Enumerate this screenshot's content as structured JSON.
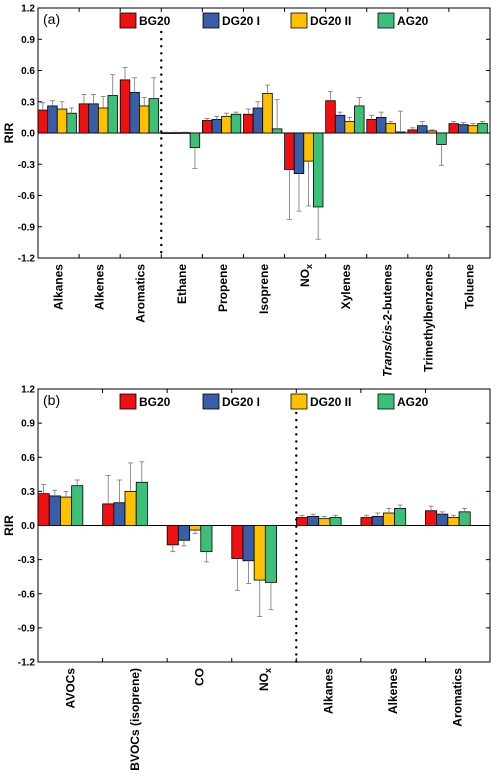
{
  "chart_data": [
    {
      "type": "bar",
      "panel_label": "(a)",
      "ylabel": "RIR",
      "ylim": [
        -1.2,
        1.2
      ],
      "yticks": [
        "-1.2",
        "-0.9",
        "-0.6",
        "-0.3",
        "0.0",
        "0.3",
        "0.6",
        "0.9",
        "1.2"
      ],
      "divider_after_index": 2,
      "legend_position": "top",
      "categories": [
        {
          "text": "Alkanes"
        },
        {
          "text": "Alkenes"
        },
        {
          "text": "Aromatics"
        },
        {
          "text": "Ethane"
        },
        {
          "text": "Propene"
        },
        {
          "text": "Isoprene"
        },
        {
          "text": "NO",
          "sub": "x"
        },
        {
          "text": "Xylenes"
        },
        {
          "italic": "Trans/cis",
          "text": "-2-butenes"
        },
        {
          "text": "Trimethylbenzenes"
        },
        {
          "text": "Toluene"
        }
      ],
      "series": [
        {
          "name": "BG20",
          "color": "#ee1111",
          "values": [
            0.22,
            0.28,
            0.51,
            0.003,
            0.12,
            0.18,
            -0.35,
            0.31,
            0.13,
            0.03,
            0.09
          ],
          "errors": [
            0.07,
            0.09,
            0.12,
            0.005,
            0.02,
            0.05,
            0.48,
            0.09,
            0.04,
            0.02,
            0.02
          ]
        },
        {
          "name": "DG20 I",
          "color": "#3a5da8",
          "values": [
            0.26,
            0.28,
            0.39,
            0.003,
            0.13,
            0.24,
            -0.39,
            0.17,
            0.15,
            0.07,
            0.08
          ],
          "errors": [
            0.05,
            0.09,
            0.14,
            0.005,
            0.03,
            0.06,
            0.36,
            0.03,
            0.05,
            0.04,
            0.02
          ]
        },
        {
          "name": "DG20 II",
          "color": "#ffc000",
          "values": [
            0.23,
            0.24,
            0.26,
            0.004,
            0.16,
            0.38,
            -0.27,
            0.11,
            0.09,
            0.02,
            0.07
          ],
          "errors": [
            0.07,
            0.11,
            0.08,
            0.005,
            0.03,
            0.08,
            0.43,
            0.04,
            0.02,
            0.01,
            0.02
          ]
        },
        {
          "name": "AG20",
          "color": "#3cc079",
          "values": [
            0.19,
            0.36,
            0.33,
            -0.14,
            0.18,
            0.04,
            -0.71,
            0.26,
            0.01,
            -0.11,
            0.09
          ],
          "errors": [
            0.05,
            0.2,
            0.2,
            0.2,
            0.02,
            0.28,
            0.31,
            0.08,
            0.2,
            0.2,
            0.02
          ]
        }
      ]
    },
    {
      "type": "bar",
      "panel_label": "(b)",
      "ylabel": "RIR",
      "ylim": [
        -1.2,
        1.2
      ],
      "yticks": [
        "-1.2",
        "-0.9",
        "-0.6",
        "-0.3",
        "0.0",
        "0.3",
        "0.6",
        "0.9",
        "1.2"
      ],
      "divider_after_index": 3,
      "legend_position": "top",
      "categories": [
        {
          "text": "AVOCs"
        },
        {
          "text": "BVOCs (isoprene)"
        },
        {
          "text": "CO"
        },
        {
          "text": "NO",
          "sub": "x"
        },
        {
          "text": "Alkanes"
        },
        {
          "text": "Alkenes"
        },
        {
          "text": "Aromatics"
        }
      ],
      "series": [
        {
          "name": "BG20",
          "color": "#ee1111",
          "values": [
            0.28,
            0.19,
            -0.17,
            -0.29,
            0.07,
            0.07,
            0.13
          ],
          "errors": [
            0.08,
            0.25,
            0.06,
            0.28,
            0.02,
            0.02,
            0.04
          ]
        },
        {
          "name": "DG20 I",
          "color": "#3a5da8",
          "values": [
            0.26,
            0.2,
            -0.13,
            -0.31,
            0.08,
            0.08,
            0.1
          ],
          "errors": [
            0.05,
            0.2,
            0.05,
            0.2,
            0.02,
            0.03,
            0.02
          ]
        },
        {
          "name": "DG20 II",
          "color": "#ffc000",
          "values": [
            0.25,
            0.3,
            -0.04,
            -0.48,
            0.06,
            0.11,
            0.07
          ],
          "errors": [
            0.05,
            0.25,
            0.03,
            0.32,
            0.02,
            0.04,
            0.02
          ]
        },
        {
          "name": "AG20",
          "color": "#3cc079",
          "values": [
            0.35,
            0.38,
            -0.23,
            -0.5,
            0.07,
            0.15,
            0.12
          ],
          "errors": [
            0.05,
            0.18,
            0.09,
            0.24,
            0.02,
            0.03,
            0.03
          ]
        }
      ]
    }
  ]
}
